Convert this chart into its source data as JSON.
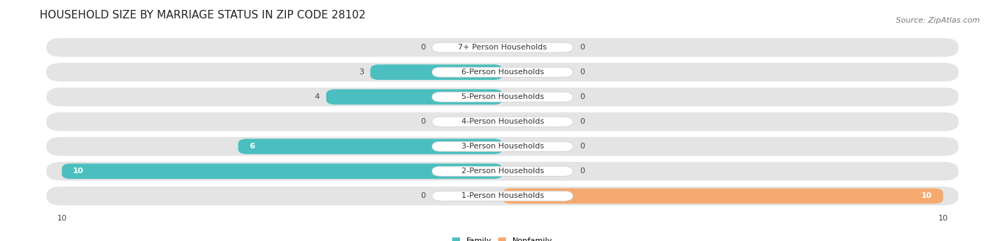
{
  "title": "HOUSEHOLD SIZE BY MARRIAGE STATUS IN ZIP CODE 28102",
  "source": "Source: ZipAtlas.com",
  "categories": [
    "7+ Person Households",
    "6-Person Households",
    "5-Person Households",
    "4-Person Households",
    "3-Person Households",
    "2-Person Households",
    "1-Person Households"
  ],
  "family_values": [
    0,
    3,
    4,
    0,
    6,
    10,
    0
  ],
  "nonfamily_values": [
    0,
    0,
    0,
    0,
    0,
    0,
    10
  ],
  "family_color": "#4BBFBF",
  "nonfamily_color": "#F5A96E",
  "xlim": 10,
  "bar_bg_color": "#e4e4e4",
  "title_fontsize": 11,
  "source_fontsize": 8,
  "label_fontsize": 8,
  "bar_height": 0.62,
  "legend_family": "Family",
  "legend_nonfamily": "Nonfamily"
}
